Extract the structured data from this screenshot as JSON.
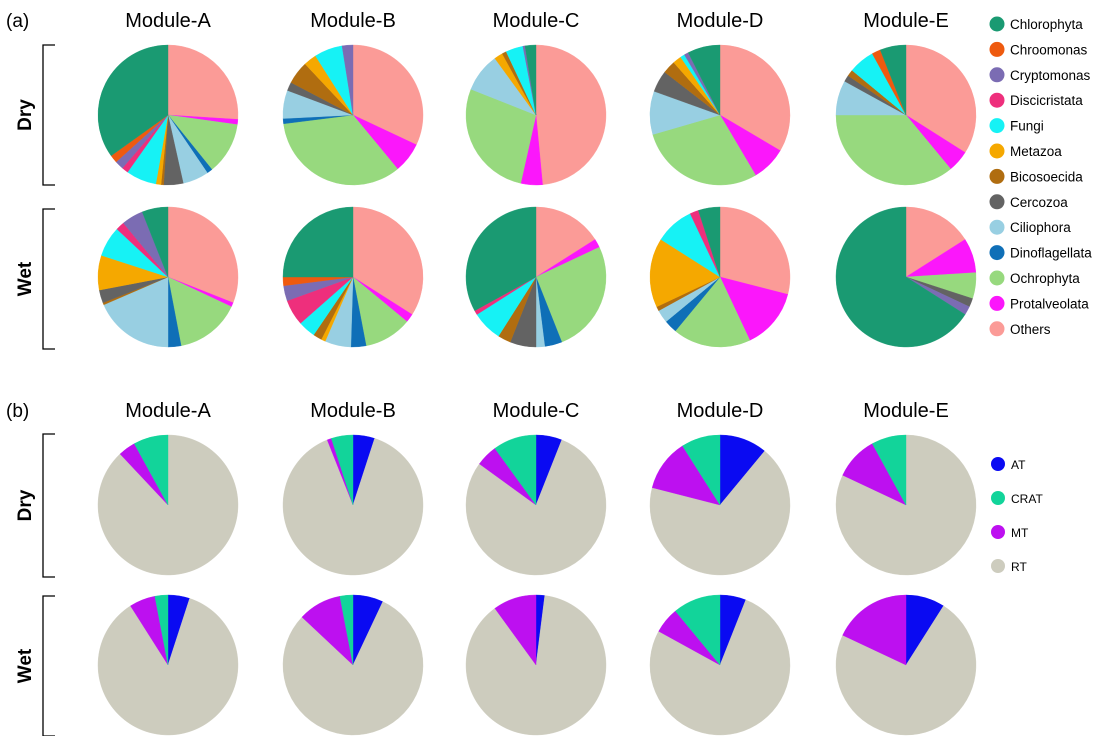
{
  "colors": {
    "Chlorophyta": "#1a9a72",
    "Chroomonas": "#ee5a0f",
    "Cryptomonas": "#7b6cb3",
    "Discicristata": "#ee2f7c",
    "Fungi": "#16f2f5",
    "Metazoa": "#f5a800",
    "Bicosoecida": "#b06d10",
    "Cercozoa": "#636363",
    "Ciliophora": "#98cfe2",
    "Dinoflagellata": "#0f6fb7",
    "Ochrophyta": "#97d97e",
    "Protalveolata": "#fb17fb",
    "Others": "#fb9b97",
    "AT": "#0a0af2",
    "CRAT": "#12d49a",
    "MT": "#bd10f0",
    "RT": "#cdccbe"
  },
  "chart_data": [
    {
      "type": "pie",
      "panel_label": "(a)",
      "modules": [
        "Module-A",
        "Module-B",
        "Module-C",
        "Module-D",
        "Module-E"
      ],
      "conditions": [
        "Dry",
        "Wet"
      ],
      "legend": [
        "Chlorophyta",
        "Chroomonas",
        "Cryptomonas",
        "Discicristata",
        "Fungi",
        "Metazoa",
        "Bicosoecida",
        "Cercozoa",
        "Ciliophora",
        "Dinoflagellata",
        "Ochrophyta",
        "Protalveolata",
        "Others"
      ],
      "pies": {
        "Dry": [
          [
            [
              "Others",
              26
            ],
            [
              "Protalveolata",
              1.2
            ],
            [
              "Ochrophyta",
              12
            ],
            [
              "Dinoflagellata",
              1.3
            ],
            [
              "Ciliophora",
              6
            ],
            [
              "Cercozoa",
              4.5
            ],
            [
              "Bicosoecida",
              0.6
            ],
            [
              "Metazoa",
              1.2
            ],
            [
              "Fungi",
              7
            ],
            [
              "Discicristata",
              1.5
            ],
            [
              "Cryptomonas",
              2
            ],
            [
              "Chroomonas",
              1.8
            ],
            [
              "Chlorophyta",
              34.9
            ]
          ],
          [
            [
              "Others",
              32
            ],
            [
              "Protalveolata",
              7
            ],
            [
              "Ochrophyta",
              34
            ],
            [
              "Dinoflagellata",
              1.2
            ],
            [
              "Ciliophora",
              6.5
            ],
            [
              "Cercozoa",
              2
            ],
            [
              "Bicosoecida",
              5.3
            ],
            [
              "Metazoa",
              3
            ],
            [
              "Fungi",
              6.5
            ],
            [
              "Cryptomonas",
              2.5
            ],
            [
              "Chlorophyta",
              0
            ]
          ],
          [
            [
              "Others",
              48.5
            ],
            [
              "Protalveolata",
              5
            ],
            [
              "Ochrophyta",
              27.5
            ],
            [
              "Ciliophora",
              9
            ],
            [
              "Metazoa",
              2
            ],
            [
              "Bicosoecida",
              1
            ],
            [
              "Fungi",
              4
            ],
            [
              "Cryptomonas",
              0.5
            ],
            [
              "Chlorophyta",
              2.5
            ]
          ],
          [
            [
              "Others",
              33.5
            ],
            [
              "Protalveolata",
              8
            ],
            [
              "Ochrophyta",
              29
            ],
            [
              "Ciliophora",
              10
            ],
            [
              "Cercozoa",
              5
            ],
            [
              "Bicosoecida",
              3
            ],
            [
              "Metazoa",
              2
            ],
            [
              "Fungi",
              1
            ],
            [
              "Cryptomonas",
              1
            ],
            [
              "Chlorophyta",
              7.5
            ]
          ],
          [
            [
              "Others",
              34
            ],
            [
              "Protalveolata",
              5
            ],
            [
              "Ochrophyta",
              36
            ],
            [
              "Ciliophora",
              8
            ],
            [
              "Cercozoa",
              1.5
            ],
            [
              "Bicosoecida",
              1.5
            ],
            [
              "Fungi",
              6
            ],
            [
              "Chroomonas",
              2
            ],
            [
              "Chlorophyta",
              6
            ]
          ]
        ],
        "Wet": [
          [
            [
              "Others",
              31
            ],
            [
              "Protalveolata",
              1
            ],
            [
              "Ochrophyta",
              15
            ],
            [
              "Dinoflagellata",
              3
            ],
            [
              "Ciliophora",
              18.5
            ],
            [
              "Bicosoecida",
              0.5
            ],
            [
              "Cercozoa",
              3
            ],
            [
              "Metazoa",
              8
            ],
            [
              "Fungi",
              7
            ],
            [
              "Discicristata",
              2
            ],
            [
              "Cryptomonas",
              5
            ],
            [
              "Chlorophyta",
              6
            ]
          ],
          [
            [
              "Others",
              34
            ],
            [
              "Protalveolata",
              2
            ],
            [
              "Ochrophyta",
              11
            ],
            [
              "Dinoflagellata",
              3.5
            ],
            [
              "Ciliophora",
              6
            ],
            [
              "Metazoa",
              1
            ],
            [
              "Bicosoecida",
              2
            ],
            [
              "Fungi",
              4
            ],
            [
              "Discicristata",
              6
            ],
            [
              "Cryptomonas",
              3.5
            ],
            [
              "Chroomonas",
              2
            ],
            [
              "Chlorophyta",
              25
            ]
          ],
          [
            [
              "Others",
              16
            ],
            [
              "Protalveolata",
              2
            ],
            [
              "Ochrophyta",
              26
            ],
            [
              "Dinoflagellata",
              4
            ],
            [
              "Ciliophora",
              2
            ],
            [
              "Cercozoa",
              6
            ],
            [
              "Bicosoecida",
              3
            ],
            [
              "Fungi",
              7
            ],
            [
              "Discicristata",
              1
            ],
            [
              "Chlorophyta",
              33
            ]
          ],
          [
            [
              "Others",
              29
            ],
            [
              "Protalveolata",
              14
            ],
            [
              "Ochrophyta",
              18
            ],
            [
              "Dinoflagellata",
              3
            ],
            [
              "Ciliophora",
              3
            ],
            [
              "Bicosoecida",
              1
            ],
            [
              "Metazoa",
              16
            ],
            [
              "Fungi",
              9
            ],
            [
              "Discicristata",
              2
            ],
            [
              "Chlorophyta",
              5
            ]
          ],
          [
            [
              "Others",
              16
            ],
            [
              "Protalveolata",
              8
            ],
            [
              "Ochrophyta",
              6
            ],
            [
              "Cercozoa",
              2
            ],
            [
              "Cryptomonas",
              2
            ],
            [
              "Chlorophyta",
              66
            ]
          ]
        ]
      }
    },
    {
      "type": "pie",
      "panel_label": "(b)",
      "modules": [
        "Module-A",
        "Module-B",
        "Module-C",
        "Module-D",
        "Module-E"
      ],
      "conditions": [
        "Dry",
        "Wet"
      ],
      "legend": [
        "AT",
        "CRAT",
        "MT",
        "RT"
      ],
      "pies": {
        "Dry": [
          [
            [
              "RT",
              88
            ],
            [
              "MT",
              4
            ],
            [
              "CRAT",
              8
            ]
          ],
          [
            [
              "AT",
              5
            ],
            [
              "RT",
              89
            ],
            [
              "MT",
              1
            ],
            [
              "CRAT",
              5
            ]
          ],
          [
            [
              "AT",
              6
            ],
            [
              "RT",
              79
            ],
            [
              "MT",
              5
            ],
            [
              "CRAT",
              10
            ]
          ],
          [
            [
              "AT",
              11
            ],
            [
              "RT",
              68
            ],
            [
              "MT",
              12
            ],
            [
              "CRAT",
              9
            ]
          ],
          [
            [
              "RT",
              82
            ],
            [
              "MT",
              10
            ],
            [
              "CRAT",
              8
            ]
          ]
        ],
        "Wet": [
          [
            [
              "AT",
              5
            ],
            [
              "RT",
              86
            ],
            [
              "MT",
              6
            ],
            [
              "CRAT",
              3
            ]
          ],
          [
            [
              "AT",
              7
            ],
            [
              "RT",
              80
            ],
            [
              "MT",
              10
            ],
            [
              "CRAT",
              3
            ]
          ],
          [
            [
              "AT",
              2
            ],
            [
              "RT",
              88
            ],
            [
              "MT",
              10
            ]
          ],
          [
            [
              "AT",
              6
            ],
            [
              "RT",
              77
            ],
            [
              "MT",
              6
            ],
            [
              "CRAT",
              11
            ]
          ],
          [
            [
              "AT",
              9
            ],
            [
              "RT",
              73
            ],
            [
              "MT",
              18
            ]
          ]
        ]
      }
    }
  ]
}
